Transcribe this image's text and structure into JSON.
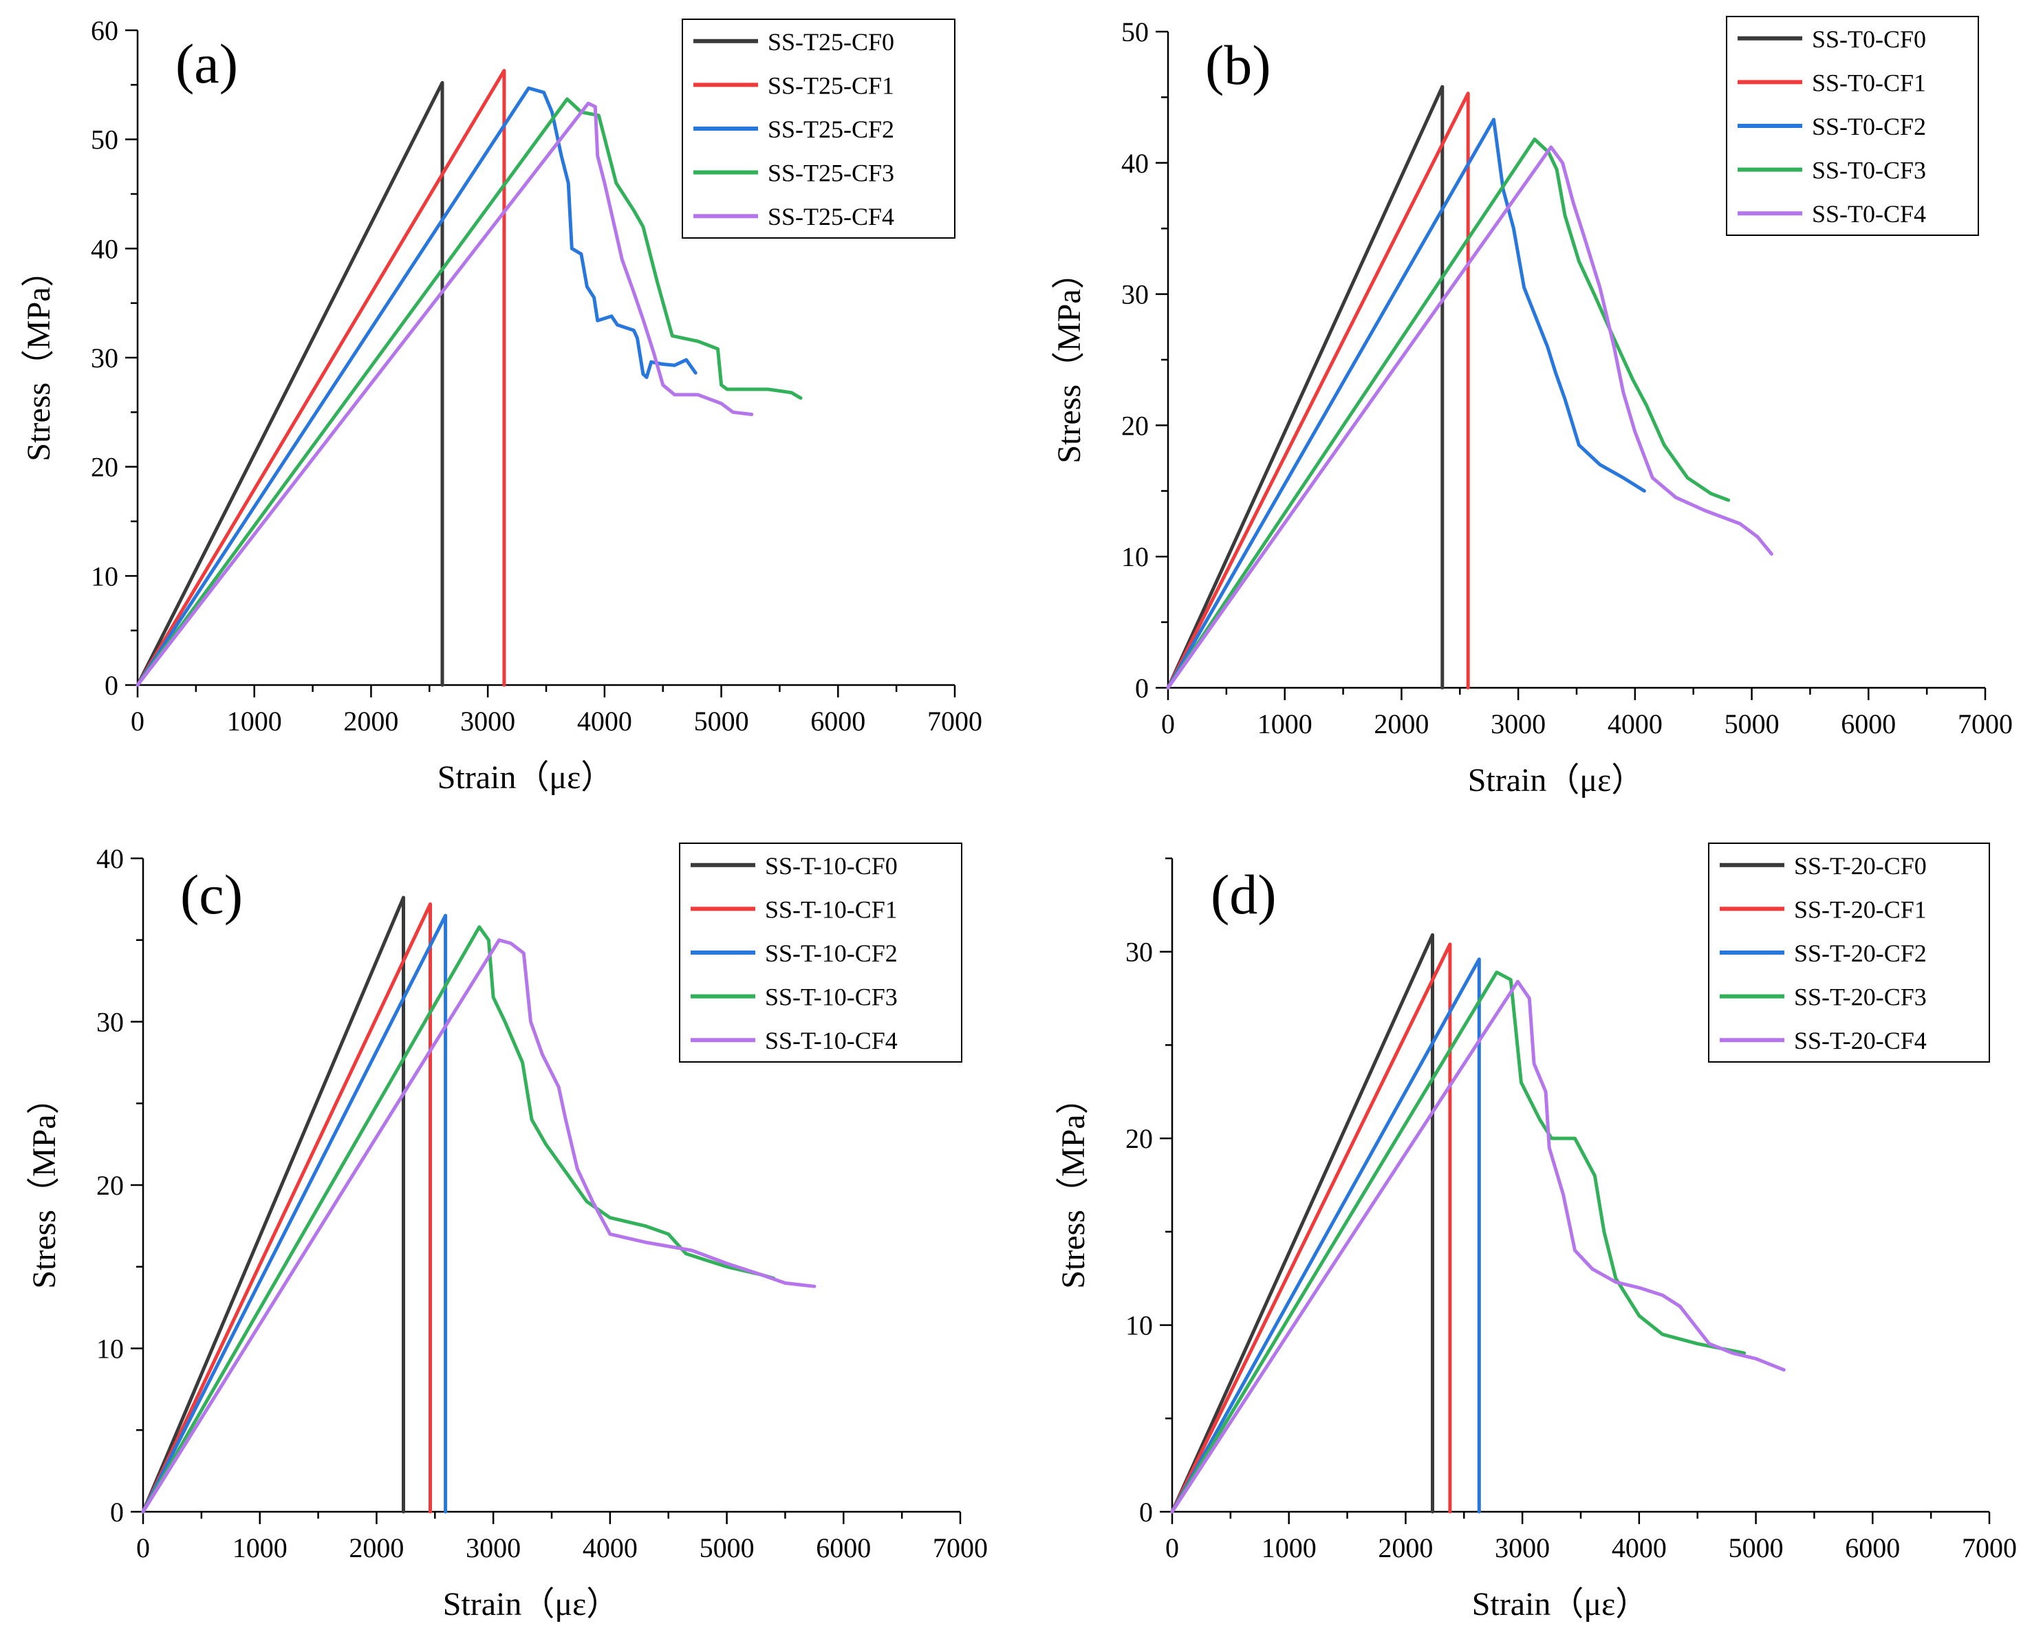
{
  "colors": {
    "CF0": "#3a3a3a",
    "CF1": "#ef3b3b",
    "CF2": "#2877dd",
    "CF3": "#33b15a",
    "CF4": "#b476ea"
  },
  "chart_data": [
    {
      "type": "line",
      "panel_label": "(a)",
      "xlabel": "Strain（με）",
      "ylabel": "Stress（MPa）",
      "xlim": [
        0,
        7000
      ],
      "ylim": [
        0,
        60
      ],
      "xticks": [
        "0",
        "1000",
        "2000",
        "3000",
        "4000",
        "5000",
        "6000",
        "7000"
      ],
      "yticks": [
        "0",
        "10",
        "20",
        "30",
        "40",
        "50",
        "60"
      ],
      "legend_position": "top-right",
      "series": [
        {
          "name": "SS-T25-CF0",
          "color_key": "CF0",
          "points": [
            [
              0,
              0
            ],
            [
              2610,
              55.2
            ],
            [
              2610,
              0
            ]
          ]
        },
        {
          "name": "SS-T25-CF1",
          "color_key": "CF1",
          "points": [
            [
              0,
              0
            ],
            [
              3140,
              56.3
            ],
            [
              3140,
              0
            ]
          ]
        },
        {
          "name": "SS-T25-CF2",
          "color_key": "CF2",
          "points": [
            [
              0,
              0
            ],
            [
              3350,
              54.7
            ],
            [
              3480,
              54.3
            ],
            [
              3550,
              52.5
            ],
            [
              3630,
              48.5
            ],
            [
              3690,
              46.0
            ],
            [
              3720,
              40.0
            ],
            [
              3800,
              39.5
            ],
            [
              3850,
              36.5
            ],
            [
              3910,
              35.5
            ],
            [
              3940,
              33.4
            ],
            [
              4060,
              33.8
            ],
            [
              4110,
              33.0
            ],
            [
              4250,
              32.5
            ],
            [
              4280,
              31.8
            ],
            [
              4330,
              28.5
            ],
            [
              4360,
              28.2
            ],
            [
              4400,
              29.6
            ],
            [
              4500,
              29.4
            ],
            [
              4600,
              29.3
            ],
            [
              4700,
              29.8
            ],
            [
              4780,
              28.6
            ]
          ]
        },
        {
          "name": "SS-T25-CF3",
          "color_key": "CF3",
          "points": [
            [
              0,
              0
            ],
            [
              3680,
              53.7
            ],
            [
              3800,
              52.5
            ],
            [
              3950,
              52.2
            ],
            [
              4100,
              46.0
            ],
            [
              4250,
              43.5
            ],
            [
              4330,
              42.0
            ],
            [
              4450,
              37.0
            ],
            [
              4580,
              32.0
            ],
            [
              4800,
              31.5
            ],
            [
              4970,
              30.8
            ],
            [
              5000,
              27.5
            ],
            [
              5050,
              27.1
            ],
            [
              5400,
              27.1
            ],
            [
              5600,
              26.8
            ],
            [
              5680,
              26.3
            ]
          ]
        },
        {
          "name": "SS-T25-CF4",
          "color_key": "CF4",
          "points": [
            [
              0,
              0
            ],
            [
              3860,
              53.3
            ],
            [
              3920,
              53.0
            ],
            [
              3940,
              48.5
            ],
            [
              4000,
              46.0
            ],
            [
              4150,
              39.0
            ],
            [
              4250,
              36.0
            ],
            [
              4330,
              33.5
            ],
            [
              4420,
              30.5
            ],
            [
              4500,
              27.5
            ],
            [
              4600,
              26.6
            ],
            [
              4800,
              26.6
            ],
            [
              5000,
              25.8
            ],
            [
              5100,
              25.0
            ],
            [
              5260,
              24.8
            ]
          ]
        }
      ]
    },
    {
      "type": "line",
      "panel_label": "(b)",
      "xlabel": "Strain（με）",
      "ylabel": "Stress（MPa）",
      "xlim": [
        0,
        7000
      ],
      "ylim": [
        0,
        50
      ],
      "xticks": [
        "0",
        "1000",
        "2000",
        "3000",
        "4000",
        "5000",
        "6000",
        "7000"
      ],
      "yticks": [
        "0",
        "10",
        "20",
        "30",
        "40",
        "50"
      ],
      "legend_position": "top-right",
      "series": [
        {
          "name": "SS-T0-CF0",
          "color_key": "CF0",
          "points": [
            [
              0,
              0
            ],
            [
              2350,
              45.8
            ],
            [
              2350,
              0
            ]
          ]
        },
        {
          "name": "SS-T0-CF1",
          "color_key": "CF1",
          "points": [
            [
              0,
              0
            ],
            [
              2570,
              45.3
            ],
            [
              2570,
              0
            ]
          ]
        },
        {
          "name": "SS-T0-CF2",
          "color_key": "CF2",
          "points": [
            [
              0,
              0
            ],
            [
              2790,
              43.3
            ],
            [
              2870,
              38.0
            ],
            [
              2960,
              35.0
            ],
            [
              3050,
              30.5
            ],
            [
              3250,
              26.0
            ],
            [
              3320,
              24.0
            ],
            [
              3400,
              22.0
            ],
            [
              3520,
              18.5
            ],
            [
              3700,
              17.0
            ],
            [
              3900,
              16.0
            ],
            [
              4080,
              15.0
            ]
          ]
        },
        {
          "name": "SS-T0-CF3",
          "color_key": "CF3",
          "points": [
            [
              0,
              0
            ],
            [
              3140,
              41.8
            ],
            [
              3260,
              40.8
            ],
            [
              3330,
              39.5
            ],
            [
              3400,
              36.0
            ],
            [
              3520,
              32.5
            ],
            [
              3650,
              30.0
            ],
            [
              3800,
              27.0
            ],
            [
              3980,
              23.5
            ],
            [
              4100,
              21.5
            ],
            [
              4250,
              18.5
            ],
            [
              4450,
              16.0
            ],
            [
              4650,
              14.8
            ],
            [
              4800,
              14.3
            ]
          ]
        },
        {
          "name": "SS-T0-CF4",
          "color_key": "CF4",
          "points": [
            [
              0,
              0
            ],
            [
              3280,
              41.2
            ],
            [
              3380,
              40.0
            ],
            [
              3470,
              37.0
            ],
            [
              3560,
              34.5
            ],
            [
              3700,
              30.5
            ],
            [
              3820,
              26.0
            ],
            [
              3900,
              22.5
            ],
            [
              4000,
              19.5
            ],
            [
              4150,
              16.0
            ],
            [
              4350,
              14.5
            ],
            [
              4600,
              13.5
            ],
            [
              4900,
              12.5
            ],
            [
              5050,
              11.5
            ],
            [
              5170,
              10.2
            ]
          ]
        }
      ]
    },
    {
      "type": "line",
      "panel_label": "(c)",
      "xlabel": "Strain（με）",
      "ylabel": "Stress（MPa）",
      "xlim": [
        0,
        7000
      ],
      "ylim": [
        0,
        40
      ],
      "xticks": [
        "0",
        "1000",
        "2000",
        "3000",
        "4000",
        "5000",
        "6000",
        "7000"
      ],
      "yticks": [
        "0",
        "10",
        "20",
        "30",
        "40"
      ],
      "legend_position": "top-right",
      "series": [
        {
          "name": "SS-T-10-CF0",
          "color_key": "CF0",
          "points": [
            [
              0,
              0
            ],
            [
              2230,
              37.6
            ],
            [
              2230,
              0
            ]
          ]
        },
        {
          "name": "SS-T-10-CF1",
          "color_key": "CF1",
          "points": [
            [
              0,
              0
            ],
            [
              2460,
              37.2
            ],
            [
              2460,
              0
            ]
          ]
        },
        {
          "name": "SS-T-10-CF2",
          "color_key": "CF2",
          "points": [
            [
              0,
              0
            ],
            [
              2590,
              36.5
            ],
            [
              2590,
              0
            ]
          ]
        },
        {
          "name": "SS-T-10-CF3",
          "color_key": "CF3",
          "points": [
            [
              0,
              0
            ],
            [
              2880,
              35.8
            ],
            [
              2960,
              35.0
            ],
            [
              3000,
              31.5
            ],
            [
              3100,
              30.0
            ],
            [
              3250,
              27.5
            ],
            [
              3330,
              24.0
            ],
            [
              3450,
              22.5
            ],
            [
              3650,
              20.5
            ],
            [
              3800,
              19.0
            ],
            [
              4000,
              18.0
            ],
            [
              4300,
              17.5
            ],
            [
              4500,
              17.0
            ],
            [
              4650,
              15.8
            ],
            [
              5000,
              15.0
            ],
            [
              5300,
              14.5
            ],
            [
              5400,
              14.3
            ]
          ]
        },
        {
          "name": "SS-T-10-CF4",
          "color_key": "CF4",
          "points": [
            [
              0,
              0
            ],
            [
              3050,
              35.0
            ],
            [
              3150,
              34.8
            ],
            [
              3260,
              34.2
            ],
            [
              3320,
              30.0
            ],
            [
              3420,
              28.0
            ],
            [
              3560,
              26.0
            ],
            [
              3620,
              24.0
            ],
            [
              3720,
              21.0
            ],
            [
              3850,
              19.0
            ],
            [
              4000,
              17.0
            ],
            [
              4300,
              16.5
            ],
            [
              4700,
              16.0
            ],
            [
              5000,
              15.2
            ],
            [
              5300,
              14.5
            ],
            [
              5500,
              14.0
            ],
            [
              5750,
              13.8
            ]
          ]
        }
      ]
    },
    {
      "type": "line",
      "panel_label": "(d)",
      "xlabel": "Strain（με）",
      "ylabel": "Stress（MPa）",
      "xlim": [
        0,
        7000
      ],
      "ylim": [
        0,
        35
      ],
      "xticks": [
        "0",
        "1000",
        "2000",
        "3000",
        "4000",
        "5000",
        "6000",
        "7000"
      ],
      "yticks": [
        "0",
        "10",
        "20",
        "30"
      ],
      "legend_position": "top-right",
      "series": [
        {
          "name": "SS-T-20-CF0",
          "color_key": "CF0",
          "points": [
            [
              0,
              0
            ],
            [
              2230,
              30.9
            ],
            [
              2230,
              0
            ]
          ]
        },
        {
          "name": "SS-T-20-CF1",
          "color_key": "CF1",
          "points": [
            [
              0,
              0
            ],
            [
              2380,
              30.4
            ],
            [
              2380,
              0
            ]
          ]
        },
        {
          "name": "SS-T-20-CF2",
          "color_key": "CF2",
          "points": [
            [
              0,
              0
            ],
            [
              2630,
              29.6
            ],
            [
              2630,
              0
            ]
          ]
        },
        {
          "name": "SS-T-20-CF3",
          "color_key": "CF3",
          "points": [
            [
              0,
              0
            ],
            [
              2780,
              28.9
            ],
            [
              2900,
              28.5
            ],
            [
              2990,
              23.0
            ],
            [
              3150,
              21.0
            ],
            [
              3250,
              20.0
            ],
            [
              3450,
              20.0
            ],
            [
              3620,
              18.0
            ],
            [
              3700,
              15.0
            ],
            [
              3800,
              12.5
            ],
            [
              4000,
              10.5
            ],
            [
              4200,
              9.5
            ],
            [
              4500,
              9.0
            ],
            [
              4900,
              8.5
            ]
          ]
        },
        {
          "name": "SS-T-20-CF4",
          "color_key": "CF4",
          "points": [
            [
              0,
              0
            ],
            [
              2960,
              28.4
            ],
            [
              3060,
              27.5
            ],
            [
              3100,
              24.0
            ],
            [
              3200,
              22.5
            ],
            [
              3230,
              19.5
            ],
            [
              3350,
              17.0
            ],
            [
              3450,
              14.0
            ],
            [
              3600,
              13.0
            ],
            [
              3800,
              12.3
            ],
            [
              4000,
              12.0
            ],
            [
              4200,
              11.6
            ],
            [
              4350,
              11.0
            ],
            [
              4600,
              9.0
            ],
            [
              4800,
              8.5
            ],
            [
              5000,
              8.2
            ],
            [
              5240,
              7.6
            ]
          ]
        }
      ]
    }
  ]
}
